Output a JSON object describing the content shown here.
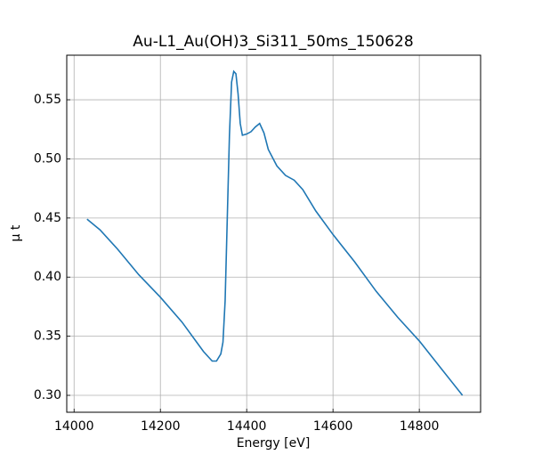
{
  "chart_data": {
    "type": "line",
    "title": "Au-L1_Au(OH)3_Si311_50ms_150628",
    "xlabel": "Energy [eV]",
    "ylabel": "μ t",
    "x": [
      14030,
      14060,
      14100,
      14150,
      14200,
      14250,
      14280,
      14300,
      14320,
      14330,
      14340,
      14345,
      14350,
      14355,
      14360,
      14365,
      14370,
      14375,
      14380,
      14385,
      14390,
      14400,
      14410,
      14420,
      14430,
      14440,
      14450,
      14470,
      14490,
      14510,
      14530,
      14560,
      14600,
      14650,
      14700,
      14750,
      14800,
      14850,
      14900
    ],
    "series": [
      {
        "name": "μ t",
        "color": "#1f77b4",
        "values": [
          0.449,
          0.44,
          0.424,
          0.402,
          0.383,
          0.362,
          0.347,
          0.337,
          0.329,
          0.329,
          0.335,
          0.345,
          0.38,
          0.45,
          0.52,
          0.565,
          0.574,
          0.572,
          0.555,
          0.53,
          0.52,
          0.521,
          0.523,
          0.527,
          0.53,
          0.522,
          0.508,
          0.494,
          0.486,
          0.482,
          0.474,
          0.456,
          0.436,
          0.413,
          0.388,
          0.366,
          0.346,
          0.323,
          0.3
        ]
      }
    ],
    "xlim": [
      13983,
      14942
    ],
    "ylim": [
      0.2857,
      0.5877
    ],
    "xticks": [
      14000,
      14200,
      14400,
      14600,
      14800
    ],
    "yticks": [
      {
        "value": 0.3,
        "label": "0.30"
      },
      0.35,
      {
        "value": 0.4,
        "label": "0.40"
      },
      0.45,
      {
        "value": 0.5,
        "label": "0.50"
      },
      0.55
    ],
    "grid": true
  }
}
